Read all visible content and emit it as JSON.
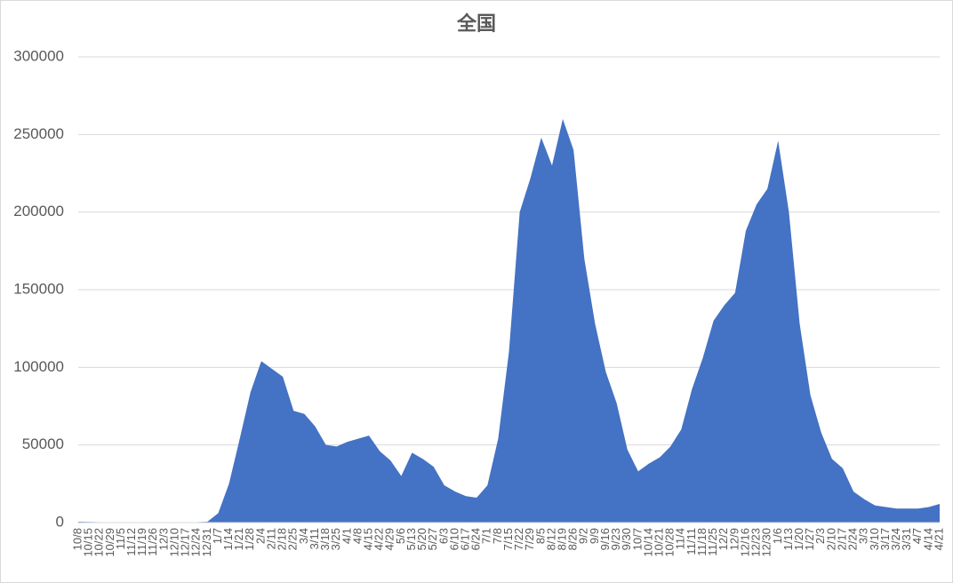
{
  "chart_data": {
    "type": "area",
    "title": "全国",
    "categories": [
      "10/8",
      "10/15",
      "10/22",
      "10/29",
      "11/5",
      "11/12",
      "11/19",
      "11/26",
      "12/3",
      "12/10",
      "12/17",
      "12/24",
      "12/31",
      "1/7",
      "1/14",
      "1/21",
      "1/28",
      "2/4",
      "2/11",
      "2/18",
      "2/25",
      "3/4",
      "3/11",
      "3/18",
      "3/25",
      "4/1",
      "4/8",
      "4/15",
      "4/22",
      "4/29",
      "5/6",
      "5/13",
      "5/20",
      "5/27",
      "6/3",
      "6/10",
      "6/17",
      "6/24",
      "7/1",
      "7/8",
      "7/15",
      "7/22",
      "7/29",
      "8/5",
      "8/12",
      "8/19",
      "8/26",
      "9/2",
      "9/9",
      "9/16",
      "9/23",
      "9/30",
      "10/7",
      "10/14",
      "10/21",
      "10/28",
      "11/4",
      "11/11",
      "11/18",
      "11/25",
      "12/2",
      "12/9",
      "12/16",
      "12/23",
      "12/30",
      "1/6",
      "1/13",
      "1/20",
      "1/27",
      "2/3",
      "2/10",
      "2/17",
      "2/24",
      "3/3",
      "3/10",
      "3/17",
      "3/24",
      "3/31",
      "4/7",
      "4/14",
      "4/21"
    ],
    "values": [
      600,
      400,
      300,
      250,
      200,
      180,
      150,
      120,
      110,
      130,
      170,
      280,
      550,
      6000,
      25000,
      54000,
      84000,
      104000,
      99000,
      94000,
      72000,
      70000,
      62000,
      50000,
      49000,
      52000,
      54000,
      56000,
      46000,
      40000,
      30000,
      45000,
      41000,
      36000,
      24000,
      20000,
      17000,
      16000,
      24000,
      54000,
      110000,
      200000,
      222000,
      248000,
      230000,
      260000,
      240000,
      170000,
      128000,
      97000,
      77000,
      47000,
      33000,
      38000,
      42000,
      49000,
      60000,
      86000,
      106000,
      130000,
      140000,
      148000,
      188000,
      205000,
      215000,
      246000,
      200000,
      128000,
      82000,
      58000,
      41000,
      35000,
      20000,
      15000,
      11000,
      10000,
      9000,
      9000,
      9000,
      10000,
      12000
    ],
    "color": "#4472c4",
    "ylim": [
      0,
      300000
    ],
    "yticks": [
      0,
      50000,
      100000,
      150000,
      200000,
      250000,
      300000
    ],
    "grid": true
  }
}
